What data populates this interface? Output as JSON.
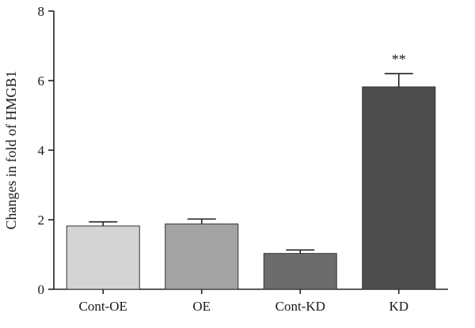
{
  "chart_data": {
    "type": "bar",
    "title": "",
    "xlabel": "",
    "ylabel": "Changes in fold of HMGB1",
    "ylim": [
      0,
      8
    ],
    "yticks": [
      0,
      2,
      4,
      6,
      8
    ],
    "categories": [
      "Cont-OE",
      "OE",
      "Cont-KD",
      "KD"
    ],
    "values": [
      1.82,
      1.88,
      1.03,
      5.82
    ],
    "errors": [
      0.12,
      0.14,
      0.1,
      0.38
    ],
    "bar_colors": [
      "#d4d4d4",
      "#a3a3a3",
      "#6c6c6c",
      "#4d4d4d"
    ],
    "annotations": [
      "",
      "",
      "",
      "**"
    ],
    "grid": false,
    "legend": "none"
  }
}
